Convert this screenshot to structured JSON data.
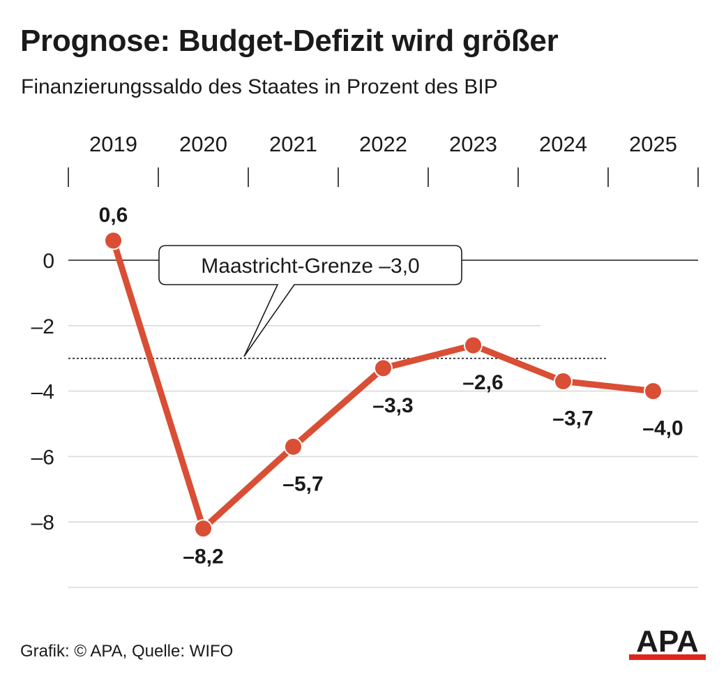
{
  "header": {
    "title": "Prognose: Budget-Defizit wird größer",
    "subtitle": "Finanzierungssaldo des Staates in Prozent des BIP"
  },
  "chart_data": {
    "type": "line",
    "title": "Prognose: Budget-Defizit wird größer",
    "subtitle": "Finanzierungssaldo des Staates in Prozent des BIP",
    "categories": [
      "2019",
      "2020",
      "2021",
      "2022",
      "2023",
      "2024",
      "2025"
    ],
    "values": [
      0.6,
      -8.2,
      -5.7,
      -3.3,
      -2.6,
      -3.7,
      -4.0
    ],
    "data_labels": [
      "0,6",
      "–8,2",
      "–5,7",
      "–3,3",
      "–2,6",
      "–3,7",
      "–4,0"
    ],
    "yticks": [
      0,
      -2,
      -4,
      -6,
      -8
    ],
    "ytick_labels": [
      "0",
      "–2",
      "–4",
      "–6",
      "–8"
    ],
    "ylim": [
      -10,
      1
    ],
    "xaxis_position": "top",
    "grid": true,
    "reference_line": {
      "value": -3.0,
      "label": "Maastricht-Grenze –3,0",
      "style": "dotted"
    },
    "line_color": "#d94e34"
  },
  "footer": {
    "credit": "Grafik: © APA, Quelle: WIFO"
  },
  "logo": {
    "text": "APA",
    "accent_color": "#e2231a"
  }
}
